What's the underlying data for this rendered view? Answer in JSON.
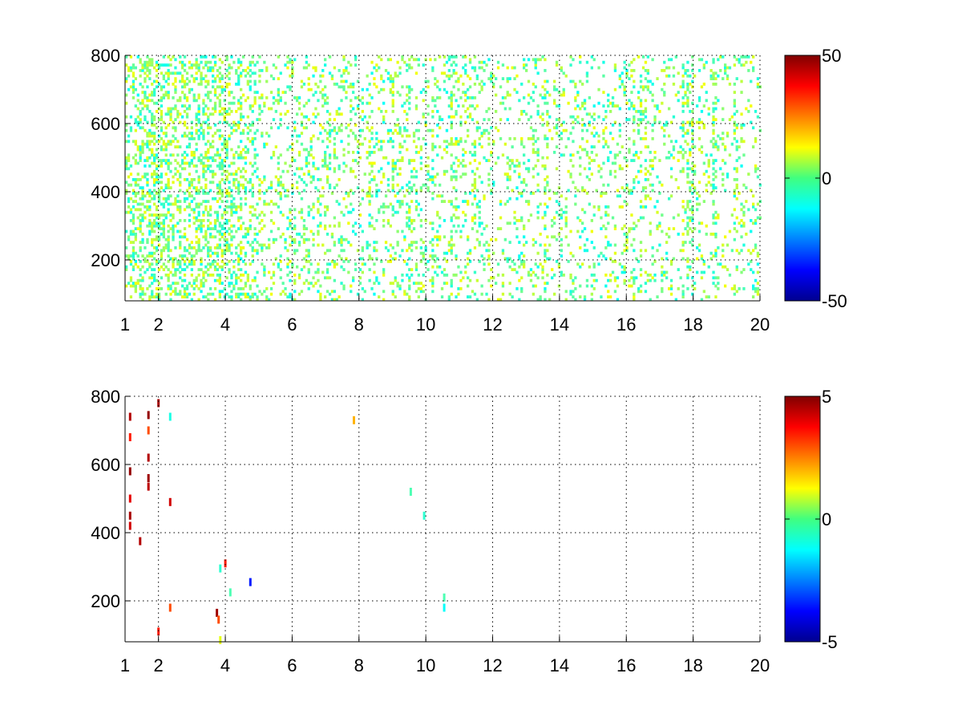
{
  "chart_data": [
    {
      "type": "heatmap",
      "title": "",
      "xlabel": "",
      "ylabel": "",
      "xlim": [
        1,
        20
      ],
      "ylim": [
        80,
        800
      ],
      "x_ticks": [
        "1",
        "2",
        "4",
        "6",
        "8",
        "10",
        "12",
        "14",
        "16",
        "18",
        "20"
      ],
      "y_ticks": [
        "200",
        "400",
        "600",
        "800"
      ],
      "grid": true,
      "colorbar": {
        "min": -50,
        "max": 50,
        "ticks": [
          "50",
          "0",
          "-50"
        ],
        "colormap": "jet"
      },
      "density_profile": [
        {
          "x": 1.0,
          "density": 0.55
        },
        {
          "x": 1.5,
          "density": 0.6
        },
        {
          "x": 2.0,
          "density": 0.65
        },
        {
          "x": 2.5,
          "density": 0.6
        },
        {
          "x": 3.0,
          "density": 0.55
        },
        {
          "x": 3.5,
          "density": 0.6
        },
        {
          "x": 4.0,
          "density": 0.6
        },
        {
          "x": 4.5,
          "density": 0.5
        },
        {
          "x": 5.0,
          "density": 0.35
        },
        {
          "x": 6.0,
          "density": 0.3
        },
        {
          "x": 7.0,
          "density": 0.35
        },
        {
          "x": 8.0,
          "density": 0.25
        },
        {
          "x": 10.0,
          "density": 0.3
        },
        {
          "x": 12.0,
          "density": 0.25
        },
        {
          "x": 14.0,
          "density": 0.25
        },
        {
          "x": 16.0,
          "density": 0.25
        },
        {
          "x": 18.0,
          "density": 0.22
        },
        {
          "x": 20.0,
          "density": 0.22
        }
      ],
      "value_range_observed": [
        -12,
        12
      ]
    },
    {
      "type": "heatmap",
      "title": "",
      "xlabel": "",
      "ylabel": "",
      "xlim": [
        1,
        20
      ],
      "ylim": [
        80,
        800
      ],
      "x_ticks": [
        "1",
        "2",
        "4",
        "6",
        "8",
        "10",
        "12",
        "14",
        "16",
        "18",
        "20"
      ],
      "y_ticks": [
        "200",
        "400",
        "600",
        "800"
      ],
      "grid": true,
      "colorbar": {
        "min": -5,
        "max": 5,
        "ticks": [
          "5",
          "0",
          "-5"
        ],
        "colormap": "jet"
      },
      "points": [
        {
          "x": 1.15,
          "y": 740,
          "value": 4.5
        },
        {
          "x": 1.15,
          "y": 680,
          "value": 3.5
        },
        {
          "x": 1.15,
          "y": 580,
          "value": 4.8
        },
        {
          "x": 1.15,
          "y": 500,
          "value": 4.0
        },
        {
          "x": 1.15,
          "y": 450,
          "value": 4.6
        },
        {
          "x": 1.15,
          "y": 420,
          "value": 4.2
        },
        {
          "x": 1.45,
          "y": 375,
          "value": 4.5
        },
        {
          "x": 1.7,
          "y": 745,
          "value": 4.8
        },
        {
          "x": 1.7,
          "y": 700,
          "value": 3.0
        },
        {
          "x": 1.7,
          "y": 620,
          "value": 4.5
        },
        {
          "x": 1.7,
          "y": 560,
          "value": 4.7
        },
        {
          "x": 1.7,
          "y": 535,
          "value": 4.4
        },
        {
          "x": 2.0,
          "y": 780,
          "value": 4.6
        },
        {
          "x": 2.0,
          "y": 110,
          "value": 3.5
        },
        {
          "x": 2.35,
          "y": 740,
          "value": -1.0
        },
        {
          "x": 2.35,
          "y": 490,
          "value": 4.2
        },
        {
          "x": 2.35,
          "y": 180,
          "value": 3.0
        },
        {
          "x": 3.75,
          "y": 165,
          "value": 4.7
        },
        {
          "x": 3.8,
          "y": 145,
          "value": 3.0
        },
        {
          "x": 3.85,
          "y": 295,
          "value": -0.8
        },
        {
          "x": 3.85,
          "y": 85,
          "value": 1.0
        },
        {
          "x": 4.0,
          "y": 310,
          "value": 3.5
        },
        {
          "x": 4.15,
          "y": 225,
          "value": -0.5
        },
        {
          "x": 4.75,
          "y": 255,
          "value": -3.5
        },
        {
          "x": 7.85,
          "y": 730,
          "value": 2.0
        },
        {
          "x": 9.55,
          "y": 520,
          "value": -0.5
        },
        {
          "x": 9.95,
          "y": 450,
          "value": -0.8
        },
        {
          "x": 10.55,
          "y": 210,
          "value": -0.5
        },
        {
          "x": 10.55,
          "y": 180,
          "value": -1.2
        }
      ]
    }
  ]
}
